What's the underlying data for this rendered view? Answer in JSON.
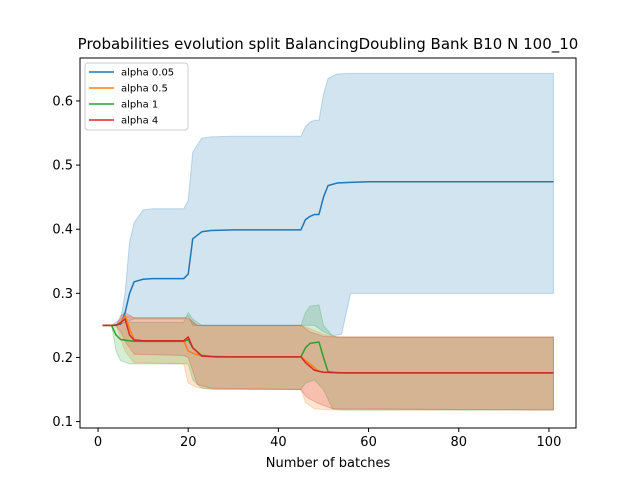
{
  "chart_data": {
    "type": "line",
    "title": "Probabilities evolution split BalancingDoubling Bank B10 N 100_10",
    "xlabel": "Number of batches",
    "ylabel": "",
    "xlim": [
      -4,
      106
    ],
    "ylim": [
      0.09,
      0.667
    ],
    "xticks": [
      0,
      20,
      40,
      60,
      80,
      100
    ],
    "yticks": [
      0.1,
      0.2,
      0.3,
      0.4,
      0.5,
      0.6
    ],
    "xtick_labels": [
      "0",
      "20",
      "40",
      "60",
      "80",
      "100"
    ],
    "ytick_labels": [
      "0.1",
      "0.2",
      "0.3",
      "0.4",
      "0.5",
      "0.6"
    ],
    "grid": false,
    "legend_position": "top-left",
    "series": [
      {
        "name": "alpha 0.05",
        "color": "#1f77b4",
        "mean": [
          [
            1,
            0.25
          ],
          [
            3,
            0.25
          ],
          [
            5,
            0.252
          ],
          [
            6,
            0.27
          ],
          [
            7,
            0.3
          ],
          [
            8,
            0.318
          ],
          [
            10,
            0.322
          ],
          [
            12,
            0.323
          ],
          [
            19,
            0.323
          ],
          [
            20,
            0.33
          ],
          [
            21,
            0.385
          ],
          [
            23,
            0.396
          ],
          [
            25,
            0.398
          ],
          [
            30,
            0.399
          ],
          [
            45,
            0.399
          ],
          [
            46,
            0.415
          ],
          [
            47,
            0.42
          ],
          [
            48,
            0.423
          ],
          [
            49,
            0.423
          ],
          [
            50,
            0.45
          ],
          [
            51,
            0.468
          ],
          [
            53,
            0.472
          ],
          [
            56,
            0.473
          ],
          [
            60,
            0.474
          ],
          [
            101,
            0.474
          ]
        ],
        "upper": [
          [
            1,
            0.25
          ],
          [
            3,
            0.25
          ],
          [
            5,
            0.26
          ],
          [
            6,
            0.3
          ],
          [
            7,
            0.38
          ],
          [
            8,
            0.41
          ],
          [
            10,
            0.43
          ],
          [
            12,
            0.432
          ],
          [
            19,
            0.432
          ],
          [
            20,
            0.445
          ],
          [
            21,
            0.52
          ],
          [
            23,
            0.542
          ],
          [
            25,
            0.544
          ],
          [
            30,
            0.545
          ],
          [
            45,
            0.545
          ],
          [
            46,
            0.56
          ],
          [
            47,
            0.567
          ],
          [
            48,
            0.57
          ],
          [
            49,
            0.57
          ],
          [
            50,
            0.61
          ],
          [
            51,
            0.635
          ],
          [
            53,
            0.642
          ],
          [
            56,
            0.643
          ],
          [
            101,
            0.643
          ]
        ],
        "lower": [
          [
            1,
            0.25
          ],
          [
            3,
            0.25
          ],
          [
            5,
            0.252
          ],
          [
            6,
            0.255
          ],
          [
            8,
            0.26
          ],
          [
            19,
            0.26
          ],
          [
            20,
            0.265
          ],
          [
            21,
            0.25
          ],
          [
            45,
            0.25
          ],
          [
            48,
            0.25
          ],
          [
            50,
            0.24
          ],
          [
            52,
            0.234
          ],
          [
            54,
            0.236
          ],
          [
            56,
            0.3
          ],
          [
            101,
            0.3
          ]
        ]
      },
      {
        "name": "alpha 0.5",
        "color": "#ff7f0e",
        "mean": [
          [
            1,
            0.25
          ],
          [
            4,
            0.25
          ],
          [
            5,
            0.255
          ],
          [
            6,
            0.265
          ],
          [
            7,
            0.245
          ],
          [
            8,
            0.228
          ],
          [
            10,
            0.226
          ],
          [
            19,
            0.226
          ],
          [
            20,
            0.21
          ],
          [
            22,
            0.204
          ],
          [
            25,
            0.202
          ],
          [
            30,
            0.201
          ],
          [
            45,
            0.201
          ],
          [
            47,
            0.19
          ],
          [
            49,
            0.178
          ],
          [
            52,
            0.176
          ],
          [
            101,
            0.176
          ]
        ],
        "upper": [
          [
            1,
            0.25
          ],
          [
            4,
            0.25
          ],
          [
            5,
            0.26
          ],
          [
            6,
            0.265
          ],
          [
            8,
            0.262
          ],
          [
            19,
            0.262
          ],
          [
            20,
            0.26
          ],
          [
            22,
            0.25
          ],
          [
            45,
            0.25
          ],
          [
            47,
            0.245
          ],
          [
            50,
            0.236
          ],
          [
            53,
            0.232
          ],
          [
            101,
            0.232
          ]
        ],
        "lower": [
          [
            1,
            0.25
          ],
          [
            4,
            0.25
          ],
          [
            5,
            0.23
          ],
          [
            6,
            0.21
          ],
          [
            8,
            0.192
          ],
          [
            19,
            0.19
          ],
          [
            20,
            0.16
          ],
          [
            22,
            0.153
          ],
          [
            25,
            0.151
          ],
          [
            45,
            0.15
          ],
          [
            46,
            0.13
          ],
          [
            48,
            0.12
          ],
          [
            52,
            0.118
          ],
          [
            101,
            0.118
          ]
        ]
      },
      {
        "name": "alpha 1",
        "color": "#2ca02c",
        "mean": [
          [
            1,
            0.25
          ],
          [
            3,
            0.25
          ],
          [
            4,
            0.235
          ],
          [
            5,
            0.228
          ],
          [
            8,
            0.225
          ],
          [
            19,
            0.225
          ],
          [
            20,
            0.228
          ],
          [
            21,
            0.215
          ],
          [
            23,
            0.203
          ],
          [
            26,
            0.201
          ],
          [
            45,
            0.201
          ],
          [
            46,
            0.215
          ],
          [
            47,
            0.222
          ],
          [
            49,
            0.224
          ],
          [
            50,
            0.2
          ],
          [
            51,
            0.178
          ],
          [
            53,
            0.176
          ],
          [
            101,
            0.176
          ]
        ],
        "upper": [
          [
            1,
            0.25
          ],
          [
            3,
            0.25
          ],
          [
            4,
            0.25
          ],
          [
            6,
            0.255
          ],
          [
            19,
            0.255
          ],
          [
            20,
            0.27
          ],
          [
            21,
            0.26
          ],
          [
            23,
            0.25
          ],
          [
            45,
            0.25
          ],
          [
            46,
            0.27
          ],
          [
            47,
            0.28
          ],
          [
            49,
            0.282
          ],
          [
            50,
            0.25
          ],
          [
            52,
            0.234
          ],
          [
            53,
            0.232
          ],
          [
            101,
            0.232
          ]
        ],
        "lower": [
          [
            1,
            0.25
          ],
          [
            3,
            0.25
          ],
          [
            4,
            0.21
          ],
          [
            5,
            0.195
          ],
          [
            7,
            0.19
          ],
          [
            19,
            0.19
          ],
          [
            20,
            0.19
          ],
          [
            21,
            0.165
          ],
          [
            23,
            0.152
          ],
          [
            26,
            0.15
          ],
          [
            45,
            0.15
          ],
          [
            46,
            0.16
          ],
          [
            48,
            0.165
          ],
          [
            50,
            0.15
          ],
          [
            52,
            0.12
          ],
          [
            54,
            0.118
          ],
          [
            101,
            0.118
          ]
        ]
      },
      {
        "name": "alpha 4",
        "color": "#d62728",
        "mean": [
          [
            1,
            0.25
          ],
          [
            4,
            0.25
          ],
          [
            5,
            0.254
          ],
          [
            6,
            0.26
          ],
          [
            7,
            0.235
          ],
          [
            8,
            0.227
          ],
          [
            10,
            0.226
          ],
          [
            19,
            0.226
          ],
          [
            20,
            0.232
          ],
          [
            21,
            0.215
          ],
          [
            23,
            0.202
          ],
          [
            26,
            0.201
          ],
          [
            45,
            0.201
          ],
          [
            46,
            0.192
          ],
          [
            48,
            0.18
          ],
          [
            50,
            0.177
          ],
          [
            55,
            0.176
          ],
          [
            101,
            0.176
          ]
        ],
        "upper": [
          [
            1,
            0.25
          ],
          [
            4,
            0.25
          ],
          [
            5,
            0.265
          ],
          [
            6,
            0.27
          ],
          [
            8,
            0.262
          ],
          [
            19,
            0.262
          ],
          [
            20,
            0.262
          ],
          [
            22,
            0.25
          ],
          [
            45,
            0.25
          ],
          [
            47,
            0.24
          ],
          [
            50,
            0.233
          ],
          [
            53,
            0.232
          ],
          [
            101,
            0.232
          ]
        ],
        "lower": [
          [
            1,
            0.25
          ],
          [
            4,
            0.25
          ],
          [
            5,
            0.24
          ],
          [
            6,
            0.225
          ],
          [
            8,
            0.205
          ],
          [
            19,
            0.203
          ],
          [
            20,
            0.2
          ],
          [
            22,
            0.158
          ],
          [
            25,
            0.152
          ],
          [
            45,
            0.15
          ],
          [
            46,
            0.14
          ],
          [
            47,
            0.135
          ],
          [
            49,
            0.128
          ],
          [
            52,
            0.12
          ],
          [
            101,
            0.118
          ]
        ]
      }
    ]
  }
}
